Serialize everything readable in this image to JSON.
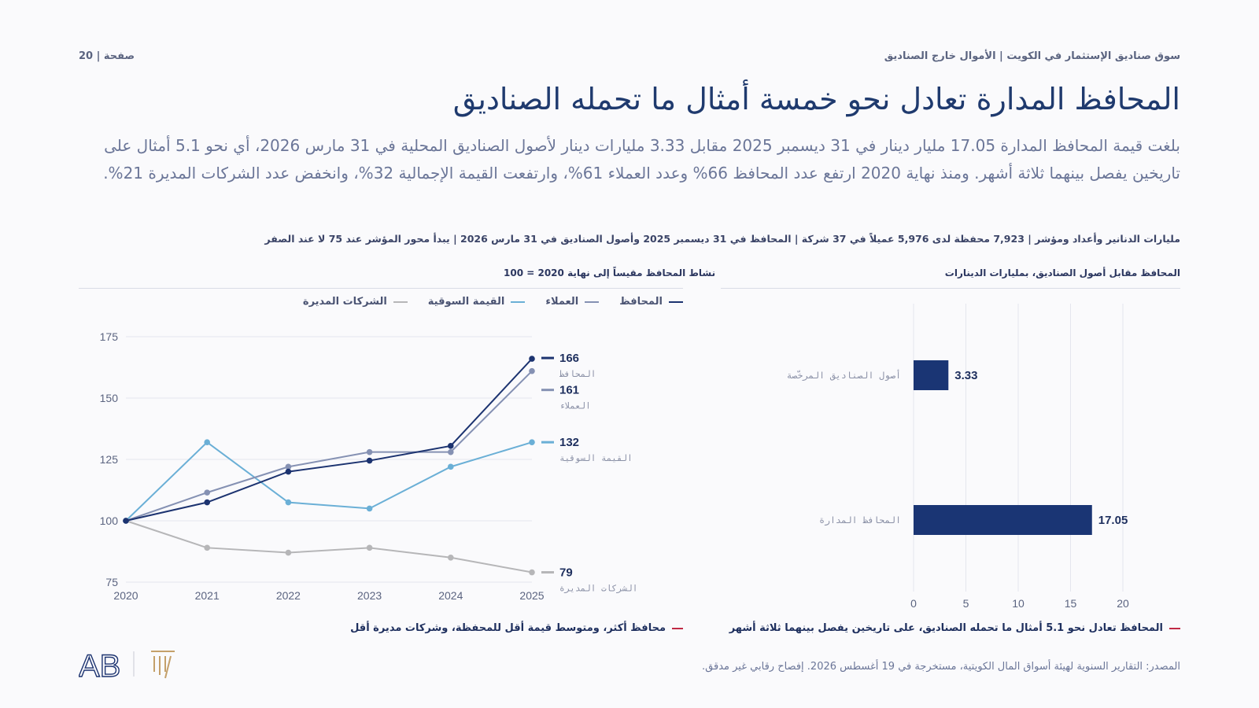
{
  "header": {
    "page_label": "صفحة | 20",
    "breadcrumb": "سوق صناديق الإستثمار في الكويت  |  الأموال خارج الصناديق"
  },
  "title": "المحافظ المدارة تعادل نحو خمسة أمثال ما تحمله الصناديق",
  "lede": "بلغت قيمة المحافظ المدارة 17.05 مليار دينار في 31 ديسمبر 2025 مقابل 3.33 مليارات دينار لأصول الصناديق المحلية في 31 مارس 2026، أي نحو 5.1 أمثال على تاريخين يفصل بينهما ثلاثة أشهر. ومنذ نهاية 2020 ارتفع عدد المحافظ 66% وعدد العملاء 61%، وارتفعت القيمة الإجمالية 32%، وانخفض عدد الشركات المديرة 21%.",
  "meta_bar": "مليارات الدنانير وأعداد ومؤشر  |  7,923 محفظة لدى 5,976 عميلاً في 37 شركة  |  المحافظ في 31 ديسمبر 2025 وأصول الصناديق في 31 مارس 2026  |  يبدأ محور المؤشر عند 75 لا عند الصفر",
  "line_panel": {
    "section_title": "نشاط المحافظ مقيساً إلى نهاية 2020 = 100",
    "caption": "محافظ أكثر، ومتوسط قيمة أقل للمحفظة، وشركات مديرة أقل"
  },
  "bar_panel": {
    "section_title": "المحافظ مقابل أصول الصناديق، بمليارات الدينارات",
    "caption": "المحافظ تعادل نحو 5.1 أمثال ما تحمله الصناديق، على تاريخين يفصل بينهما ثلاثة أشهر"
  },
  "source": "المصدر: التقارير السنوية لهيئة أسواق المال الكويتية، مستخرجة في 19 أغسطس 2026. إفصاح رقابي غير مدقق.",
  "logo_text": "AB",
  "colors": {
    "navy": "#1c3370",
    "slate": "#8591b3",
    "sky": "#6aafd6",
    "grey": "#b6b6b8",
    "bar": "#1a3574",
    "accent": "#c02a45"
  },
  "chart_data": [
    {
      "type": "line",
      "title": "نشاط المحافظ مقيساً إلى نهاية 2020 = 100",
      "x": [
        2020,
        2021,
        2022,
        2023,
        2024,
        2025
      ],
      "ylim": [
        75,
        175
      ],
      "yticks": [
        75,
        100,
        125,
        150,
        175
      ],
      "grid": true,
      "legend_position": "top-right",
      "series": [
        {
          "name": "المحافظ",
          "color": "#1c3370",
          "values": [
            100,
            107.5,
            120,
            124.5,
            130.5,
            166
          ],
          "end_label": "166"
        },
        {
          "name": "العملاء",
          "color": "#8591b3",
          "values": [
            100,
            111.5,
            122,
            128,
            128,
            161
          ],
          "end_label": "161"
        },
        {
          "name": "القيمة السوقية",
          "color": "#6aafd6",
          "values": [
            100,
            132,
            107.5,
            105,
            122,
            132
          ],
          "end_label": "132"
        },
        {
          "name": "الشركات المديرة",
          "color": "#b6b6b8",
          "values": [
            100,
            89,
            87,
            89,
            85,
            79
          ],
          "end_label": "79"
        }
      ]
    },
    {
      "type": "bar",
      "orientation": "horizontal",
      "title": "المحافظ مقابل أصول الصناديق، بمليارات الدينارات",
      "categories": [
        "أصول الصناديق المرخّصة",
        "المحافظ المدارة"
      ],
      "values": [
        3.33,
        17.05
      ],
      "value_labels": [
        "3.33",
        "17.05"
      ],
      "xlim": [
        0,
        20
      ],
      "xticks": [
        0,
        5,
        10,
        15,
        20
      ],
      "grid": true
    }
  ]
}
